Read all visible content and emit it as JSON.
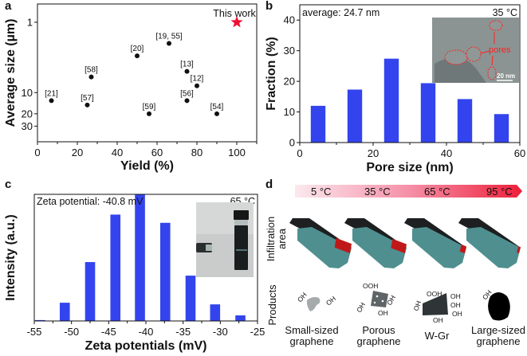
{
  "panel_labels": [
    "a",
    "b",
    "c",
    "d"
  ],
  "colors": {
    "bar": "#3344ee",
    "highlight": "#ee1133",
    "point": "#111111"
  },
  "chart_data": [
    {
      "type": "scatter",
      "panel": "a",
      "xlabel": "Yield (%)",
      "ylabel": "Average  size (µm)",
      "xlim": [
        0,
        110
      ],
      "ylim": [
        0.55,
        50
      ],
      "y_scale": "log",
      "y_inverted": true,
      "xticks": [
        0,
        20,
        40,
        60,
        80,
        100
      ],
      "yticks": [
        1,
        10,
        20,
        30
      ],
      "points": [
        {
          "label": "[21]",
          "x": 7,
          "y": 13
        },
        {
          "label": "[57]",
          "x": 25,
          "y": 15
        },
        {
          "label": "[58]",
          "x": 27,
          "y": 6
        },
        {
          "label": "[20]",
          "x": 50,
          "y": 3
        },
        {
          "label": "[19, 55]",
          "x": 66,
          "y": 2
        },
        {
          "label": "[59]",
          "x": 56,
          "y": 20
        },
        {
          "label": "[13]",
          "x": 75,
          "y": 5
        },
        {
          "label": "[12]",
          "x": 80,
          "y": 8
        },
        {
          "label": "[56]",
          "x": 75,
          "y": 13
        },
        {
          "label": "[54]",
          "x": 90,
          "y": 20
        }
      ],
      "highlight": {
        "label": "This work",
        "x": 100,
        "y": 1,
        "marker": "star"
      }
    },
    {
      "type": "bar",
      "panel": "b",
      "xlabel": "Pore size (nm)",
      "ylabel": "Fraction (%)",
      "xlim": [
        0,
        60
      ],
      "ylim": [
        0,
        45
      ],
      "xticks": [
        0,
        20,
        40,
        60
      ],
      "yticks": [
        0,
        10,
        20,
        30,
        40
      ],
      "x": [
        5,
        15,
        25,
        35,
        45,
        55
      ],
      "bar_width": 4,
      "values": [
        12.0,
        17.3,
        27.4,
        19.4,
        14.2,
        9.3
      ],
      "annotations": {
        "average": "average: 24.7 nm",
        "temperature": "35 °C"
      },
      "inset": {
        "type": "TEM image",
        "label": "pores",
        "scale_bar": "20 nm"
      }
    },
    {
      "type": "bar",
      "panel": "c",
      "xlabel": "Zeta potentials (mV)",
      "ylabel": "Intensity (a.u.)",
      "xlim": [
        -55,
        -25
      ],
      "ylim": [
        0,
        100
      ],
      "xticks": [
        -55,
        -50,
        -45,
        -40,
        -35,
        -30,
        -25
      ],
      "x": [
        -54.2,
        -50.9,
        -47.5,
        -44.1,
        -40.8,
        -37.4,
        -34.0,
        -30.7,
        -27.3
      ],
      "bar_width": 1.35,
      "values": [
        0.7,
        14.4,
        46.5,
        84,
        100,
        77.5,
        35.8,
        13.1,
        4.4
      ],
      "annotations": {
        "zeta": "Zeta potential: -40.8 mV",
        "temperature": "65 °C"
      },
      "inset": {
        "type": "photo of dispersion vial"
      }
    }
  ],
  "diagram": {
    "temperatures": [
      "5 °C",
      "35 °C",
      "65 °C",
      "95 °C"
    ],
    "row_labels": {
      "infiltration_1": "Infiltration",
      "infiltration_2": "area",
      "products": "Products"
    },
    "infiltration_levels": [
      0.55,
      0.5,
      0.18,
      0.08
    ],
    "products": [
      {
        "line1": "Small-sized",
        "line2": "graphene"
      },
      {
        "line1": "Porous",
        "line2": "graphene"
      },
      {
        "line1": "W-Gr",
        "line2": ""
      },
      {
        "line1": "Large-sized",
        "line2": "graphene"
      }
    ],
    "groups": {
      "oh": "OH",
      "ooh": "OOH"
    }
  }
}
